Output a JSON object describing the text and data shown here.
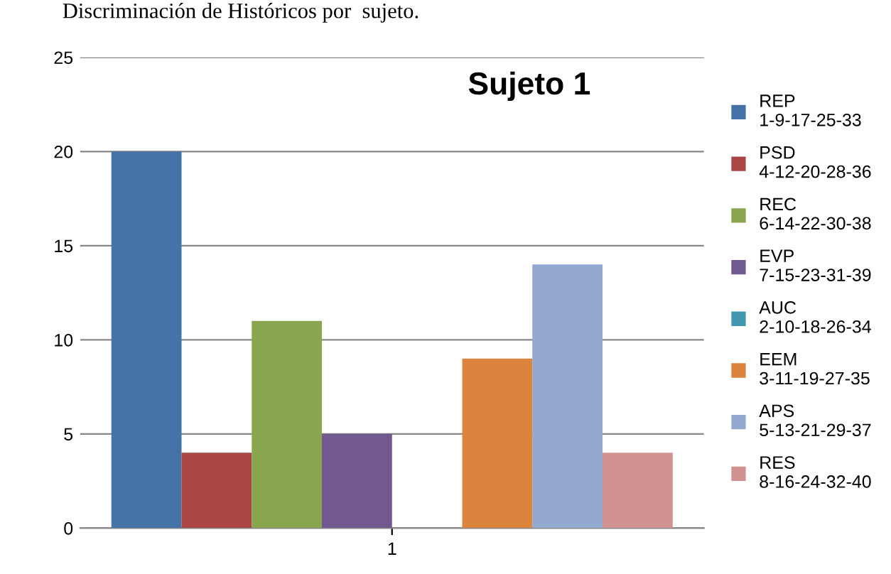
{
  "chart_data": {
    "type": "bar",
    "title": "Sujeto 1",
    "annotations": [
      "Discriminación de Históricos por  sujeto."
    ],
    "categories": [
      "1"
    ],
    "series": [
      {
        "name": "REP\n1-9-17-25-33",
        "color": "#4572a7",
        "values": [
          20
        ]
      },
      {
        "name": "PSD\n4-12-20-28-36",
        "color": "#aa4643",
        "values": [
          4
        ]
      },
      {
        "name": "REC\n6-14-22-30-38",
        "color": "#89a54e",
        "values": [
          11
        ]
      },
      {
        "name": "EVP\n7-15-23-31-39",
        "color": "#71588f",
        "values": [
          5
        ]
      },
      {
        "name": "AUC\n2-10-18-26-34",
        "color": "#4198af",
        "values": [
          0
        ]
      },
      {
        "name": "EEM\n3-11-19-27-35",
        "color": "#db843d",
        "values": [
          9
        ]
      },
      {
        "name": "APS\n5-13-21-29-37",
        "color": "#93a9cf",
        "values": [
          14
        ]
      },
      {
        "name": "RES\n8-16-24-32-40",
        "color": "#d19392",
        "values": [
          4
        ]
      }
    ],
    "ylim": [
      0,
      25
    ],
    "yticks": [
      0,
      5,
      10,
      15,
      20,
      25
    ],
    "grid": "y",
    "legend": "right"
  }
}
